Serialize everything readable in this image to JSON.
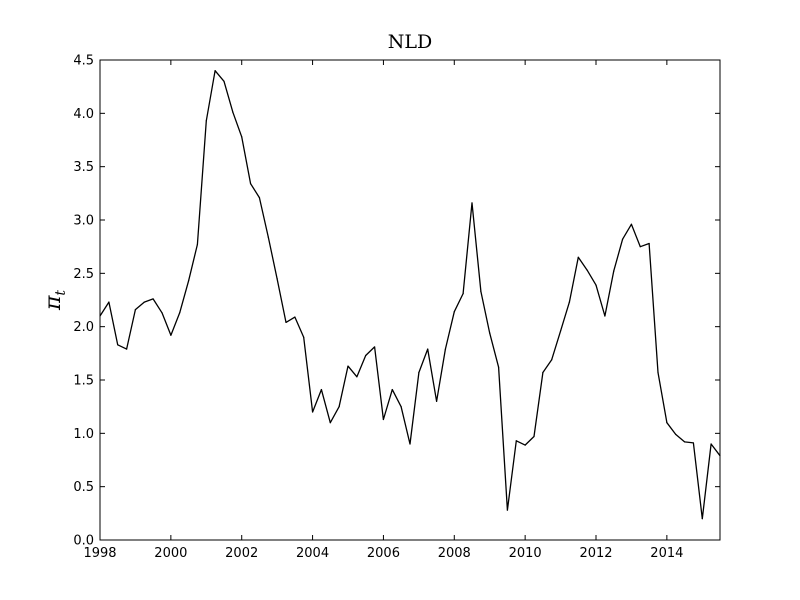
{
  "chart_data": {
    "type": "line",
    "title": "NLD",
    "xlabel": "",
    "ylabel": "π",
    "ylabel_subscript": "t",
    "xlim": [
      1998,
      2015.5
    ],
    "ylim": [
      0,
      4.5
    ],
    "x_ticks": [
      1998,
      2000,
      2002,
      2004,
      2006,
      2008,
      2010,
      2012,
      2014
    ],
    "x_tick_labels": [
      "1998",
      "2000",
      "2002",
      "2004",
      "2006",
      "2008",
      "2010",
      "2012",
      "2014"
    ],
    "y_ticks": [
      0,
      0.5,
      1,
      1.5,
      2,
      2.5,
      3,
      3.5,
      4,
      4.5
    ],
    "y_tick_labels": [
      "0.0",
      "0.5",
      "1.0",
      "1.5",
      "2.0",
      "2.5",
      "3.0",
      "3.5",
      "4.0",
      "4.5"
    ],
    "grid": false,
    "line_color": "#000000",
    "series": [
      {
        "x": [
          1998.0,
          1998.25,
          1998.5,
          1998.75,
          1999.0,
          1999.25,
          1999.5,
          1999.75,
          2000.0,
          2000.25,
          2000.5,
          2000.75,
          2001.0,
          2001.25,
          2001.5,
          2001.75,
          2002.0,
          2002.25,
          2002.5,
          2002.75,
          2003.0,
          2003.25,
          2003.5,
          2003.75,
          2004.0,
          2004.25,
          2004.5,
          2004.75,
          2005.0,
          2005.25,
          2005.5,
          2005.75,
          2006.0,
          2006.25,
          2006.5,
          2006.75,
          2007.0,
          2007.25,
          2007.5,
          2007.75,
          2008.0,
          2008.25,
          2008.5,
          2008.75,
          2009.0,
          2009.25,
          2009.5,
          2009.75,
          2010.0,
          2010.25,
          2010.5,
          2010.75,
          2011.0,
          2011.25,
          2011.5,
          2011.75,
          2012.0,
          2012.25,
          2012.5,
          2012.75,
          2013.0,
          2013.25,
          2013.5,
          2013.75,
          2014.0,
          2014.25,
          2014.5,
          2014.75,
          2015.0,
          2015.25,
          2015.5
        ],
        "y": [
          2.1,
          2.23,
          1.83,
          1.79,
          2.16,
          2.23,
          2.26,
          2.13,
          1.92,
          2.13,
          2.43,
          2.77,
          3.93,
          4.4,
          4.3,
          4.01,
          3.78,
          3.34,
          3.21,
          2.84,
          2.45,
          2.04,
          2.09,
          1.9,
          1.2,
          1.41,
          1.1,
          1.25,
          1.63,
          1.53,
          1.73,
          1.81,
          1.13,
          1.41,
          1.25,
          0.9,
          1.57,
          1.79,
          1.3,
          1.79,
          2.14,
          2.31,
          3.16,
          2.33,
          1.94,
          1.62,
          0.28,
          0.93,
          0.89,
          0.97,
          1.57,
          1.69,
          1.96,
          2.23,
          2.65,
          2.53,
          2.39,
          2.1,
          2.52,
          2.82,
          2.96,
          2.75,
          2.78,
          1.57,
          1.1,
          0.99,
          0.92,
          0.91,
          0.2,
          0.9,
          0.79
        ]
      }
    ]
  }
}
